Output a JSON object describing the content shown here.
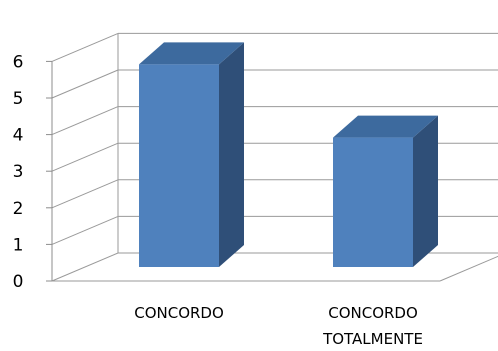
{
  "chart_data": {
    "type": "bar",
    "categories": [
      "CONCORDO",
      "CONCORDO TOTALMENTE"
    ],
    "category_lines": [
      [
        "CONCORDO"
      ],
      [
        "CONCORDO",
        "TOTALMENTE"
      ]
    ],
    "values": [
      6,
      4
    ],
    "yticks": [
      "0",
      "1",
      "2",
      "3",
      "4",
      "5",
      "6"
    ],
    "ylim": [
      0,
      6
    ],
    "grid": true,
    "style": "3d-column",
    "colors": {
      "bar_front": "#4F81BD",
      "bar_side": "#2F4F78",
      "bar_top": "#3D6A9E",
      "grid": "#9A9A9A",
      "axis": "#8C8C8C"
    }
  }
}
